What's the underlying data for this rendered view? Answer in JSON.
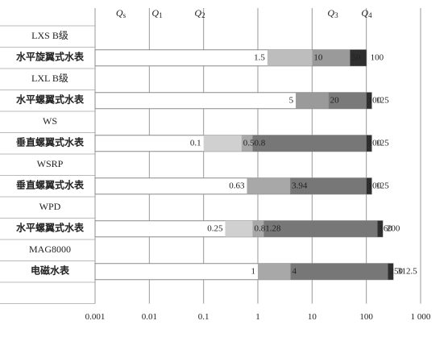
{
  "chart_data": {
    "type": "range-bar",
    "log_x": true,
    "grid": true,
    "xlim": [
      0.001,
      1000
    ],
    "xticks": [
      0.001,
      0.01,
      0.1,
      1,
      10,
      100,
      {
        "value": 1000,
        "label": "1 000"
      }
    ],
    "annotations": [
      {
        "text": "Q",
        "sub": "s"
      },
      {
        "text": "Q",
        "sub": "1"
      },
      {
        "text": "Q",
        "sub": "2"
      },
      {
        "text": "Q",
        "sub": "3"
      },
      {
        "text": "Q",
        "sub": "4"
      }
    ],
    "series": [
      {
        "group": "LXS B级",
        "name": "水平旋翼式水表",
        "values": [
          1.5,
          10,
          50,
          100
        ],
        "colors": [
          "#bdbdbd",
          "#9a9a9a",
          "#2f2f2f"
        ]
      },
      {
        "group": "LXL B级",
        "name": "水平螺翼式水表",
        "values": [
          5,
          20,
          100,
          125
        ],
        "colors": [
          "#9a9a9a",
          "#7a7a7a",
          "#2f2f2f"
        ]
      },
      {
        "group": "WS",
        "name": "垂直螺翼式水表",
        "values": [
          0.1,
          0.5,
          0.8,
          100,
          125
        ],
        "colors": [
          "#d0d0d0",
          "#a8a8a8",
          "#777777",
          "#2f2f2f"
        ]
      },
      {
        "group": "WSRP",
        "name": "垂直螺翼式水表",
        "values": [
          0.63,
          3.94,
          100,
          125
        ],
        "colors": [
          "#a8a8a8",
          "#777777",
          "#2f2f2f"
        ]
      },
      {
        "group": "WPD",
        "name": "水平螺翼式水表",
        "values": [
          0.25,
          0.8,
          1.28,
          160,
          200
        ],
        "colors": [
          "#d0d0d0",
          "#a8a8a8",
          "#777777",
          "#2f2f2f"
        ]
      },
      {
        "group": "MAG8000",
        "name": "电磁水表",
        "values": [
          1,
          4,
          250,
          312.5
        ],
        "colors": [
          "#a8a8a8",
          "#777777",
          "#2f2f2f"
        ]
      }
    ]
  }
}
